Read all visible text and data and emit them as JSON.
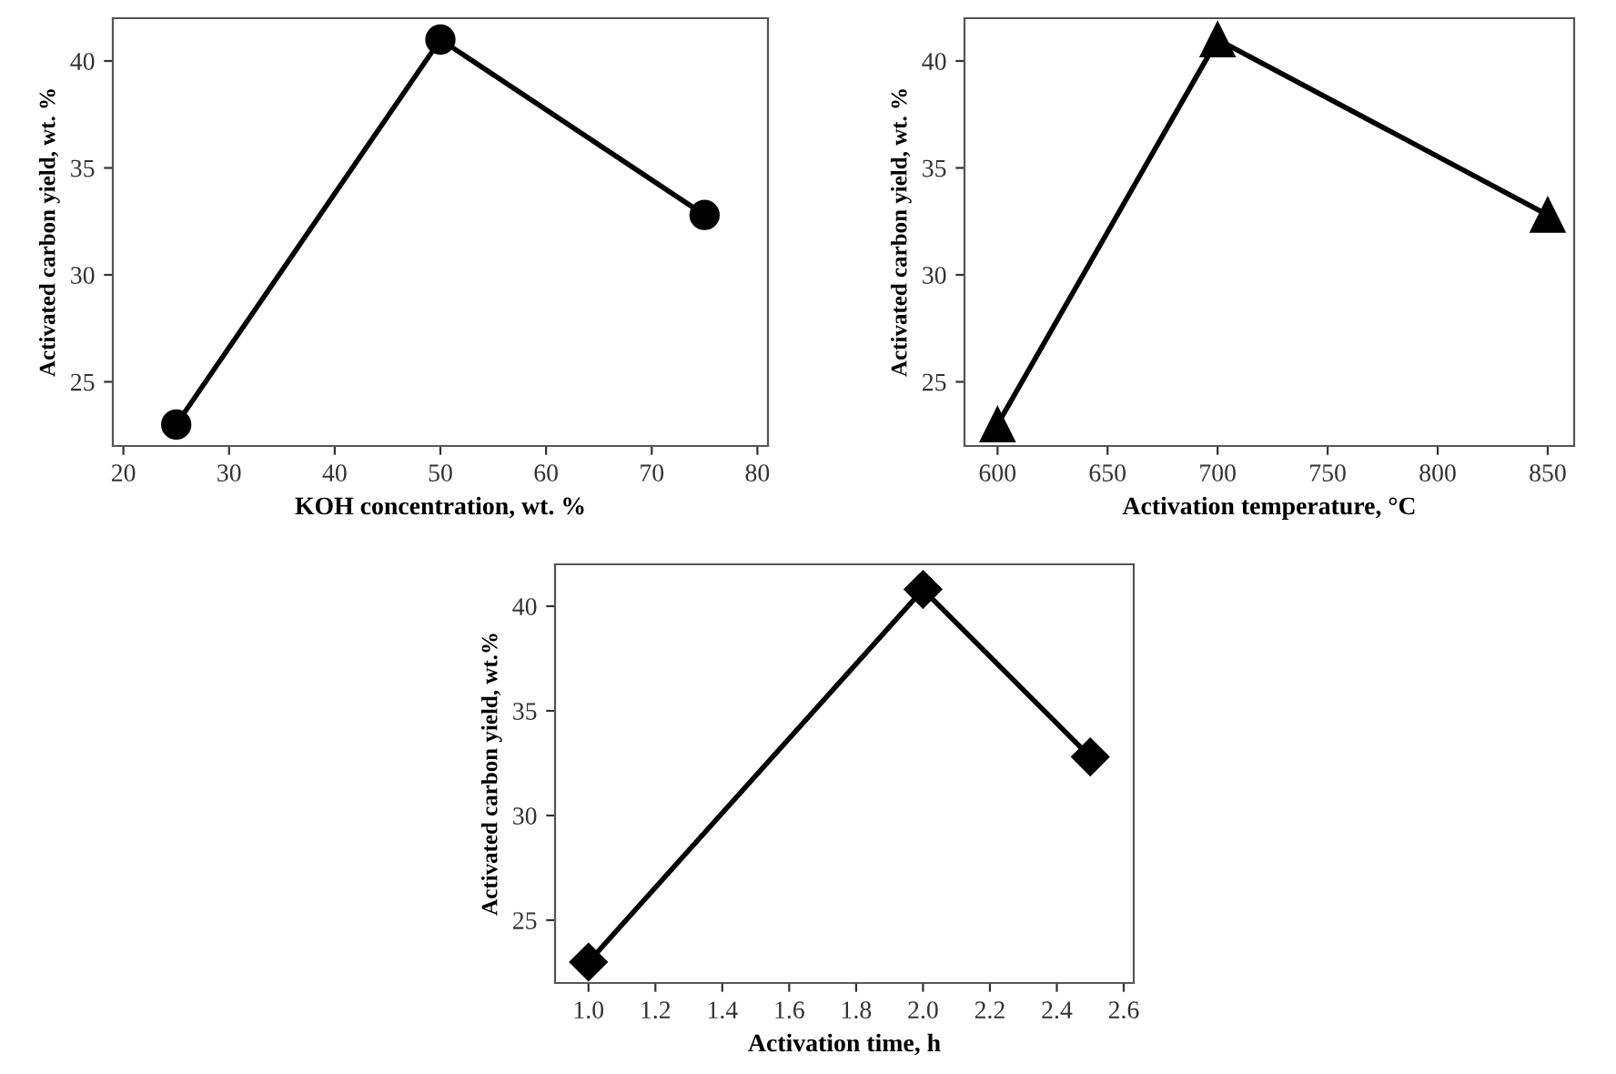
{
  "chart_data": [
    {
      "type": "line",
      "xlabel": "KOH concentration, wt. %",
      "ylabel": "Activated carbon yield, wt. %",
      "x": [
        25,
        50,
        75
      ],
      "series": [
        {
          "color": "#000000",
          "values": [
            23,
            41,
            32.8
          ]
        }
      ],
      "marker": "circle",
      "line_style": "solid",
      "xlim": [
        19,
        81
      ],
      "xticks": [
        20,
        30,
        40,
        50,
        60,
        70,
        80
      ],
      "ylim": [
        22,
        42
      ],
      "yticks": [
        25,
        30,
        35,
        40
      ],
      "grid": false,
      "legend": false
    },
    {
      "type": "line",
      "xlabel": "Activation temperature, °C",
      "ylabel": "Activated carbon yield, wt. %",
      "x": [
        600,
        700,
        850
      ],
      "series": [
        {
          "color": "#000000",
          "values": [
            23,
            41,
            32.8
          ]
        }
      ],
      "marker": "triangle",
      "line_style": "solid",
      "xlim": [
        585,
        862
      ],
      "xticks": [
        600,
        650,
        700,
        750,
        800,
        850
      ],
      "ylim": [
        22,
        42
      ],
      "yticks": [
        25,
        30,
        35,
        40
      ],
      "grid": false,
      "legend": false
    },
    {
      "type": "line",
      "xlabel": "Activation time, h",
      "ylabel": "Activated carbon yield, wt.%",
      "x": [
        1.0,
        2.0,
        2.5
      ],
      "series": [
        {
          "color": "#000000",
          "values": [
            23,
            40.8,
            32.8
          ]
        }
      ],
      "marker": "diamond",
      "line_style": "solid",
      "xlim": [
        0.9,
        2.63
      ],
      "xticks": [
        {
          "value": 1.0,
          "label": "1.0"
        },
        {
          "value": 1.2,
          "label": "1.2"
        },
        {
          "value": 1.4,
          "label": "1.4"
        },
        {
          "value": 1.6,
          "label": "1.6"
        },
        {
          "value": 1.8,
          "label": "1.8"
        },
        {
          "value": 2.0,
          "label": "2.0"
        },
        {
          "value": 2.2,
          "label": "2.2"
        },
        {
          "value": 2.4,
          "label": "2.4"
        },
        {
          "value": 2.6,
          "label": "2.6"
        }
      ],
      "ylim": [
        22,
        42
      ],
      "yticks": [
        25,
        30,
        35,
        40
      ],
      "grid": false,
      "legend": false
    }
  ]
}
